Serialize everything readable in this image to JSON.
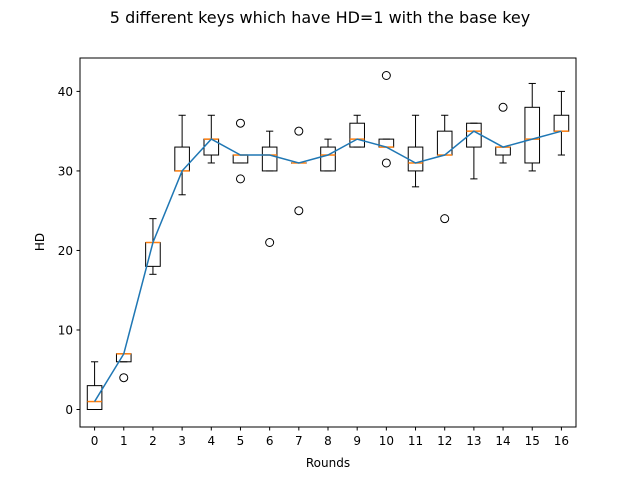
{
  "chart_data": {
    "type": "box",
    "title": "5 different keys which have HD=1 with the base key",
    "xlabel": "Rounds",
    "ylabel": "HD",
    "categories": [
      "0",
      "1",
      "2",
      "3",
      "4",
      "5",
      "6",
      "7",
      "8",
      "9",
      "10",
      "11",
      "12",
      "13",
      "14",
      "15",
      "16"
    ],
    "xlim": [
      -0.5,
      16.5
    ],
    "ylim": [
      -2.2,
      44.2
    ],
    "yticks": [
      0,
      10,
      20,
      30,
      40
    ],
    "boxes": [
      {
        "round": 0,
        "whislo": 0,
        "q1": 0,
        "med": 1,
        "q3": 3,
        "whishi": 6,
        "fliers": []
      },
      {
        "round": 1,
        "whislo": 6,
        "q1": 6,
        "med": 7,
        "q3": 7,
        "whishi": 7,
        "fliers": [
          4
        ]
      },
      {
        "round": 2,
        "whislo": 17,
        "q1": 18,
        "med": 21,
        "q3": 21,
        "whishi": 24,
        "fliers": []
      },
      {
        "round": 3,
        "whislo": 27,
        "q1": 30,
        "med": 30,
        "q3": 33,
        "whishi": 37,
        "fliers": []
      },
      {
        "round": 4,
        "whislo": 31,
        "q1": 32,
        "med": 34,
        "q3": 34,
        "whishi": 37,
        "fliers": []
      },
      {
        "round": 5,
        "whislo": 31,
        "q1": 31,
        "med": 32,
        "q3": 32,
        "whishi": 32,
        "fliers": [
          36,
          29
        ]
      },
      {
        "round": 6,
        "whislo": 30,
        "q1": 30,
        "med": 32,
        "q3": 33,
        "whishi": 35,
        "fliers": [
          21
        ]
      },
      {
        "round": 7,
        "whislo": 31,
        "q1": 31,
        "med": 31,
        "q3": 31,
        "whishi": 31,
        "fliers": [
          35,
          25
        ]
      },
      {
        "round": 8,
        "whislo": 30,
        "q1": 30,
        "med": 32,
        "q3": 33,
        "whishi": 34,
        "fliers": []
      },
      {
        "round": 9,
        "whislo": 33,
        "q1": 33,
        "med": 34,
        "q3": 36,
        "whishi": 37,
        "fliers": []
      },
      {
        "round": 10,
        "whislo": 33,
        "q1": 33,
        "med": 33,
        "q3": 34,
        "whishi": 34,
        "fliers": [
          42,
          31
        ]
      },
      {
        "round": 11,
        "whislo": 28,
        "q1": 30,
        "med": 31,
        "q3": 33,
        "whishi": 37,
        "fliers": []
      },
      {
        "round": 12,
        "whislo": 32,
        "q1": 32,
        "med": 32,
        "q3": 35,
        "whishi": 37,
        "fliers": [
          24
        ]
      },
      {
        "round": 13,
        "whislo": 29,
        "q1": 33,
        "med": 35,
        "q3": 36,
        "whishi": 36,
        "fliers": []
      },
      {
        "round": 14,
        "whislo": 31,
        "q1": 32,
        "med": 33,
        "q3": 33,
        "whishi": 33,
        "fliers": [
          38
        ]
      },
      {
        "round": 15,
        "whislo": 30,
        "q1": 31,
        "med": 34,
        "q3": 38,
        "whishi": 41,
        "fliers": []
      },
      {
        "round": 16,
        "whislo": 32,
        "q1": 35,
        "med": 35,
        "q3": 37,
        "whishi": 40,
        "fliers": []
      }
    ],
    "median_line": {
      "x": [
        0,
        1,
        2,
        3,
        4,
        5,
        6,
        7,
        8,
        9,
        10,
        11,
        12,
        13,
        14,
        15,
        16
      ],
      "y": [
        1,
        7,
        21,
        30,
        34,
        32,
        32,
        31,
        32,
        34,
        33,
        31,
        32,
        35,
        33,
        34,
        35
      ]
    },
    "colors": {
      "median": "#ff7f0e",
      "line": "#1f77b4",
      "box": "#000000"
    },
    "grid": false,
    "legend": "none"
  }
}
